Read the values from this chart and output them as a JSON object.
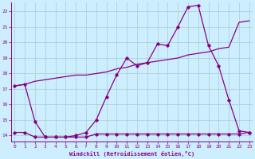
{
  "xlabel": "Windchill (Refroidissement éolien,°C)",
  "bg_color": "#cceeff",
  "grid_color": "#aacccc",
  "line_color": "#880088",
  "x_ticks": [
    0,
    1,
    2,
    3,
    4,
    5,
    6,
    7,
    8,
    9,
    10,
    11,
    12,
    13,
    14,
    15,
    16,
    17,
    18,
    19,
    20,
    21,
    22,
    23
  ],
  "y_ticks": [
    14,
    15,
    16,
    17,
    18,
    19,
    20,
    21,
    22
  ],
  "xlim": [
    -0.3,
    23.3
  ],
  "ylim": [
    13.6,
    22.6
  ],
  "line1_x": [
    0,
    1,
    2,
    3,
    4,
    5,
    6,
    7,
    8,
    9,
    10,
    11,
    12,
    13,
    14,
    15,
    16,
    17,
    18,
    19,
    20,
    21,
    22,
    23
  ],
  "line1_y": [
    17.2,
    17.3,
    17.5,
    17.6,
    17.7,
    17.8,
    17.9,
    17.9,
    18.0,
    18.1,
    18.3,
    18.4,
    18.6,
    18.7,
    18.8,
    18.9,
    19.0,
    19.2,
    19.3,
    19.4,
    19.6,
    19.7,
    21.3,
    21.4
  ],
  "line2_x": [
    0,
    1,
    2,
    3,
    4,
    5,
    6,
    7,
    8,
    9,
    10,
    11,
    12,
    13,
    14,
    15,
    16,
    17,
    18,
    19,
    20,
    21,
    22,
    23
  ],
  "line2_y": [
    17.2,
    17.3,
    14.9,
    13.9,
    13.9,
    13.9,
    14.0,
    14.2,
    15.0,
    16.5,
    17.9,
    19.0,
    18.5,
    18.7,
    19.9,
    19.8,
    21.0,
    22.3,
    22.4,
    19.8,
    18.5,
    16.3,
    14.3,
    14.2
  ],
  "line3_x": [
    0,
    1,
    2,
    3,
    4,
    5,
    6,
    7,
    8,
    9,
    10,
    11,
    12,
    13,
    14,
    15,
    16,
    17,
    18,
    19,
    20,
    21,
    22,
    23
  ],
  "line3_y": [
    14.2,
    14.2,
    13.9,
    13.9,
    13.9,
    13.9,
    13.9,
    13.9,
    14.1,
    14.1,
    14.1,
    14.1,
    14.1,
    14.1,
    14.1,
    14.1,
    14.1,
    14.1,
    14.1,
    14.1,
    14.1,
    14.1,
    14.1,
    14.2
  ],
  "marker": "D",
  "marker_size": 1.8,
  "linewidth": 0.9
}
